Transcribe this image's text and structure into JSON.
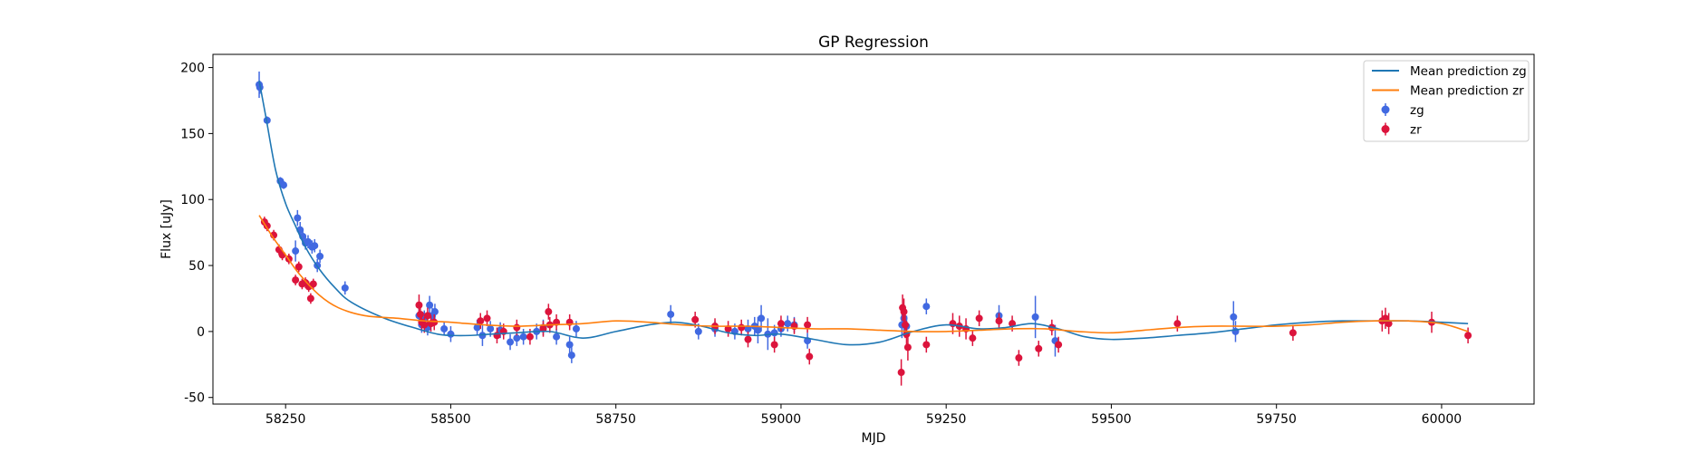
{
  "chart_data": {
    "type": "scatter",
    "title": "GP Regression",
    "xlabel": "MJD",
    "ylabel": "Flux [uJy]",
    "xlim": [
      58140,
      60140
    ],
    "ylim": [
      -55,
      210
    ],
    "xticks": [
      58250,
      58500,
      58750,
      59000,
      59250,
      59500,
      59750,
      60000
    ],
    "yticks": [
      -50,
      0,
      50,
      100,
      150,
      200
    ],
    "grid": false,
    "legend_position": "top-right",
    "legend": [
      {
        "label": "Mean prediction zg",
        "kind": "line",
        "color": "#1f77b4"
      },
      {
        "label": "Mean prediction zr",
        "kind": "line",
        "color": "#ff7f0e"
      },
      {
        "label": "zg",
        "kind": "point",
        "color": "#4169e1"
      },
      {
        "label": "zr",
        "kind": "point",
        "color": "#dc143c"
      }
    ],
    "series": [
      {
        "name": "Mean prediction zg",
        "kind": "line",
        "color": "#1f77b4",
        "x": [
          58210,
          58220,
          58235,
          58250,
          58265,
          58280,
          58300,
          58325,
          58350,
          58400,
          58450,
          58480,
          58500,
          58530,
          58560,
          58600,
          58650,
          58700,
          58750,
          58800,
          58840,
          58880,
          58920,
          58960,
          59000,
          59050,
          59100,
          59150,
          59200,
          59250,
          59300,
          59340,
          59380,
          59420,
          59460,
          59500,
          59550,
          59600,
          59650,
          59700,
          59750,
          59800,
          59850,
          59900,
          59950,
          60000,
          60040
        ],
        "y": [
          190,
          163,
          122,
          97,
          80,
          64,
          48,
          33,
          22,
          10,
          2,
          -2,
          -3,
          -3,
          -2,
          -1,
          0,
          -5,
          0,
          5,
          7,
          4,
          -1,
          -3,
          -2,
          -6,
          -10,
          -8,
          0,
          5,
          2,
          3,
          6,
          2,
          -4,
          -6,
          -5,
          -3,
          -1,
          2,
          5,
          7,
          8,
          8,
          8,
          7,
          6
        ]
      },
      {
        "name": "Mean prediction zr",
        "kind": "line",
        "color": "#ff7f0e",
        "x": [
          58210,
          58230,
          58250,
          58270,
          58300,
          58330,
          58370,
          58420,
          58460,
          58500,
          58550,
          58600,
          58650,
          58700,
          58750,
          58800,
          58850,
          58900,
          58950,
          59000,
          59050,
          59100,
          59150,
          59200,
          59250,
          59300,
          59350,
          59400,
          59450,
          59500,
          59550,
          59600,
          59650,
          59700,
          59750,
          59800,
          59850,
          59900,
          59950,
          60000,
          60040
        ],
        "y": [
          88,
          72,
          58,
          44,
          28,
          18,
          12,
          10,
          8,
          7,
          5,
          4,
          5,
          6,
          8,
          7,
          5,
          4,
          4,
          3,
          2,
          2,
          1,
          0,
          0,
          1,
          2,
          2,
          0,
          -1,
          1,
          3,
          4,
          4,
          4,
          5,
          7,
          8,
          8,
          6,
          0
        ]
      },
      {
        "name": "zg",
        "kind": "points",
        "color": "#4169e1",
        "x": [
          58210,
          58211,
          58222,
          58242,
          58247,
          58265,
          58268,
          58272,
          58276,
          58280,
          58284,
          58290,
          58294,
          58298,
          58302,
          58340,
          58452,
          58456,
          58460,
          58465,
          58468,
          58472,
          58476,
          58490,
          58500,
          58540,
          58548,
          58560,
          58575,
          58590,
          58600,
          58610,
          58630,
          58640,
          58660,
          58680,
          58683,
          58690,
          58833,
          58875,
          58900,
          58930,
          58950,
          58960,
          58965,
          58970,
          58980,
          58990,
          59000,
          59010,
          59020,
          59040,
          59183,
          59186,
          59190,
          59220,
          59330,
          59385,
          59415,
          59685,
          59688
        ],
        "y": [
          187,
          185,
          160,
          114,
          111,
          61,
          86,
          77,
          72,
          67,
          68,
          64,
          65,
          50,
          57,
          33,
          12,
          5,
          10,
          3,
          20,
          12,
          15,
          2,
          -2,
          3,
          -3,
          2,
          1,
          -8,
          -5,
          -4,
          0,
          3,
          -4,
          -10,
          -18,
          2,
          13,
          0,
          2,
          0,
          2,
          4,
          1,
          10,
          -2,
          -1,
          2,
          6,
          5,
          -7,
          5,
          10,
          4,
          19,
          12,
          11,
          -7,
          11,
          0
        ],
        "err": [
          10,
          5,
          3,
          3,
          3,
          8,
          6,
          6,
          6,
          5,
          5,
          5,
          5,
          5,
          5,
          5,
          8,
          6,
          6,
          6,
          7,
          6,
          6,
          5,
          6,
          6,
          8,
          6,
          6,
          6,
          6,
          6,
          6,
          6,
          6,
          6,
          6,
          6,
          7,
          6,
          6,
          6,
          7,
          7,
          10,
          10,
          12,
          6,
          6,
          6,
          6,
          6,
          10,
          10,
          8,
          6,
          8,
          16,
          12,
          12,
          8
        ]
      },
      {
        "name": "zr",
        "kind": "points",
        "color": "#dc143c",
        "x": [
          58218,
          58222,
          58232,
          58240,
          58245,
          58255,
          58265,
          58270,
          58275,
          58280,
          58285,
          58288,
          58292,
          58452,
          58454,
          58456,
          58460,
          58465,
          58470,
          58475,
          58545,
          58555,
          58570,
          58580,
          58600,
          58620,
          58640,
          58648,
          58650,
          58660,
          58680,
          58870,
          58900,
          58920,
          58940,
          58950,
          58990,
          59000,
          59020,
          59040,
          59043,
          59182,
          59184,
          59186,
          59188,
          59190,
          59192,
          59220,
          59260,
          59270,
          59280,
          59290,
          59300,
          59330,
          59350,
          59360,
          59390,
          59410,
          59420,
          59600,
          59775,
          59910,
          59915,
          59920,
          59985,
          60040
        ],
        "y": [
          83,
          80,
          73,
          62,
          58,
          55,
          39,
          49,
          36,
          37,
          34,
          25,
          36,
          20,
          13,
          7,
          5,
          12,
          6,
          7,
          8,
          10,
          -3,
          0,
          3,
          -4,
          2,
          15,
          5,
          7,
          7,
          9,
          4,
          2,
          3,
          -6,
          -10,
          6,
          4,
          5,
          -19,
          -31,
          18,
          15,
          5,
          -2,
          -12,
          -10,
          6,
          4,
          2,
          -5,
          10,
          8,
          6,
          -20,
          -13,
          3,
          -10,
          6,
          -1,
          8,
          10,
          6,
          7,
          -3
        ],
        "err": [
          4,
          4,
          4,
          4,
          4,
          4,
          4,
          4,
          4,
          4,
          4,
          4,
          4,
          8,
          6,
          6,
          6,
          6,
          6,
          6,
          6,
          6,
          6,
          6,
          6,
          6,
          6,
          6,
          6,
          6,
          6,
          6,
          6,
          6,
          6,
          6,
          6,
          6,
          6,
          6,
          6,
          10,
          10,
          10,
          10,
          10,
          10,
          6,
          8,
          8,
          8,
          6,
          6,
          6,
          6,
          6,
          6,
          6,
          6,
          6,
          6,
          8,
          8,
          8,
          8,
          6
        ]
      }
    ]
  }
}
